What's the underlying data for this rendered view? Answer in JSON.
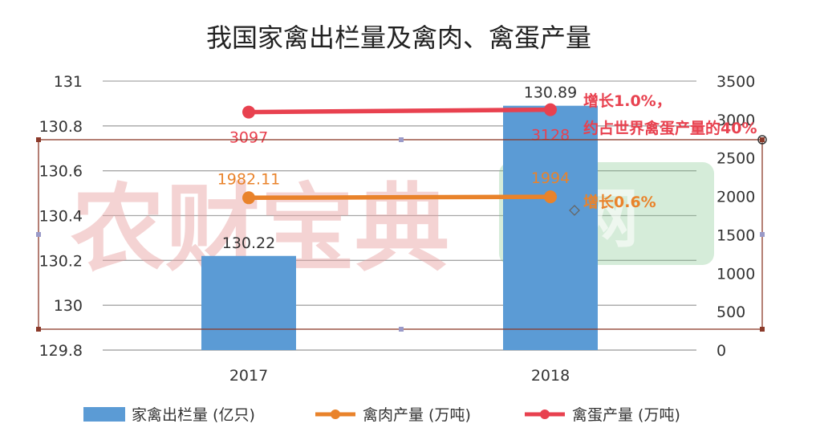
{
  "chart_data": {
    "type": "bar",
    "title": "我国家禽出栏量及禽肉、禽蛋产量",
    "categories": [
      "2017",
      "2018"
    ],
    "y_left": {
      "ylim": [
        129.8,
        131
      ],
      "ticks": [
        "129.8",
        "130",
        "130.2",
        "130.4",
        "130.6",
        "130.8",
        "131"
      ]
    },
    "y_right": {
      "ylim": [
        0,
        3500
      ],
      "ticks": [
        "0",
        "500",
        "1000",
        "1500",
        "2000",
        "2500",
        "3000",
        "3500"
      ]
    },
    "series": [
      {
        "name": "家禽出栏量 (亿只)",
        "type": "bar",
        "axis": "left",
        "color": "#5b9bd5",
        "values": [
          130.22,
          130.89
        ],
        "labels": [
          "130.22",
          "130.89"
        ]
      },
      {
        "name": "禽肉产量 (万吨)",
        "type": "line",
        "axis": "right",
        "color": "#e9832b",
        "values": [
          1982.11,
          1994
        ],
        "labels": [
          "1982.11",
          "1994"
        ]
      },
      {
        "name": "禽蛋产量 (万吨)",
        "type": "line",
        "axis": "right",
        "color": "#e8414f",
        "values": [
          3097,
          3128
        ],
        "labels": [
          "3097",
          "3128"
        ]
      }
    ],
    "annotations": {
      "egg_line1": "增长1.0%，",
      "egg_line2": "约占世界禽蛋产量的40%",
      "meat": "增长0.6%"
    },
    "legend_position": "bottom",
    "grid": true
  },
  "watermark": {
    "text": "农财宝典",
    "logo_text": "网"
  }
}
